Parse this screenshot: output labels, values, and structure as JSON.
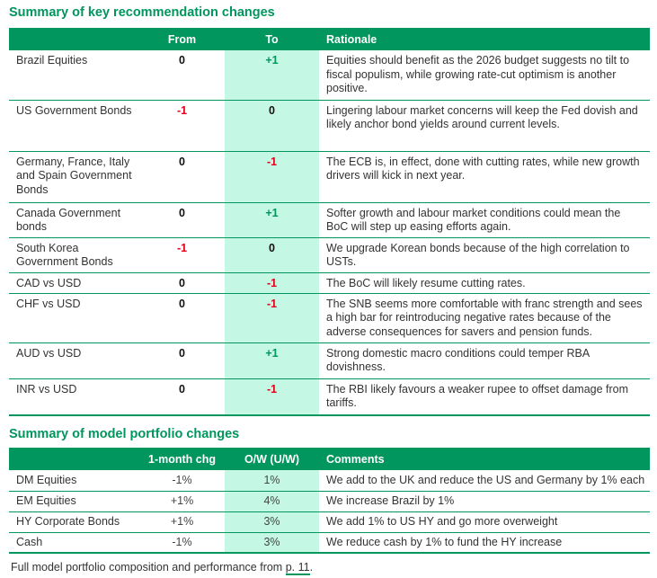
{
  "rec": {
    "title": "Summary of key recommendation changes",
    "headers": [
      "",
      "From",
      "To",
      "Rationale"
    ],
    "rows": [
      {
        "asset": "Brazil Equities",
        "from": "0",
        "to": "+1",
        "rationale": "Equities should benefit as the 2026 budget suggests no tilt to fiscal populism, while growing rate-cut optimism is another positive."
      },
      {
        "asset": "US Government Bonds",
        "from": "-1",
        "to": "0",
        "rationale": "Lingering labour market concerns will keep the Fed dovish and likely anchor bond yields around current levels."
      },
      {
        "asset": "Germany, France, Italy and Spain Government Bonds",
        "from": "0",
        "to": "-1",
        "rationale": "The ECB is, in effect, done with cutting rates, while new growth drivers will kick in next year."
      },
      {
        "asset": "Canada Government bonds",
        "from": "0",
        "to": "+1",
        "rationale": "Softer growth and labour market conditions could mean the BoC will step up easing efforts again."
      },
      {
        "asset": "South Korea Government Bonds",
        "from": "-1",
        "to": "0",
        "rationale": "We upgrade Korean bonds because of the high correlation to USTs."
      },
      {
        "asset": "CAD vs USD",
        "from": "0",
        "to": "-1",
        "rationale": "The BoC will likely resume cutting rates."
      },
      {
        "asset": "CHF vs USD",
        "from": "0",
        "to": "-1",
        "rationale": "The SNB seems more comfortable with franc strength and sees a high bar for reintroducing negative rates because of the adverse consequences for savers and pension funds."
      },
      {
        "asset": "AUD vs USD",
        "from": "0",
        "to": "+1",
        "rationale": "Strong domestic macro conditions could temper RBA dovishness."
      },
      {
        "asset": "INR vs USD",
        "from": "0",
        "to": "-1",
        "rationale": "The RBI likely favours a weaker rupee to offset damage from tariffs."
      }
    ]
  },
  "port": {
    "title": "Summary of model portfolio changes",
    "headers": [
      "",
      "1-month chg",
      "O/W (U/W)",
      "Comments"
    ],
    "rows": [
      {
        "asset": "DM Equities",
        "chg": "-1%",
        "ow": "1%",
        "comment": "We add to the UK and reduce the US and Germany by 1% each"
      },
      {
        "asset": "EM Equities",
        "chg": "+1%",
        "ow": "4%",
        "comment": "We increase Brazil by 1%"
      },
      {
        "asset": "HY Corporate Bonds",
        "chg": "+1%",
        "ow": "3%",
        "comment": "We add 1% to US HY and go more overweight"
      },
      {
        "asset": "Cash",
        "chg": "-1%",
        "ow": "3%",
        "comment": "We reduce cash by 1% to fund the HY increase"
      }
    ]
  },
  "footnote": {
    "text": "Full model portfolio composition and performance from ",
    "link": "p. 11",
    "end": "."
  }
}
